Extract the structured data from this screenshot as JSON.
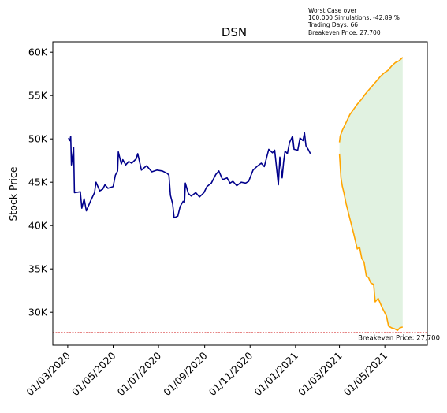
{
  "chart_data": {
    "type": "line",
    "title": "DSN",
    "ylabel": "Stock Price",
    "xlabel": "",
    "xlim": [
      "2020-02-10",
      "2021-06-27"
    ],
    "ylim": [
      26200,
      61200
    ],
    "grid": false,
    "x_ticks": [
      "01/03/2020",
      "01/05/2020",
      "01/07/2020",
      "01/09/2020",
      "01/11/2020",
      "01/01/2021",
      "01/03/2021",
      "01/05/2021"
    ],
    "y_ticks": [
      {
        "value": 30000,
        "label": "30K"
      },
      {
        "value": 35000,
        "label": "35K"
      },
      {
        "value": 40000,
        "label": "40K"
      },
      {
        "value": 45000,
        "label": "45K"
      },
      {
        "value": 50000,
        "label": "50K"
      },
      {
        "value": 55000,
        "label": "55K"
      },
      {
        "value": 60000,
        "label": "60K"
      }
    ],
    "series": [
      {
        "color": "#00008b",
        "points": [
          [
            "2020-03-02",
            50100
          ],
          [
            "2020-03-04",
            49800
          ],
          [
            "2020-03-05",
            50300
          ],
          [
            "2020-03-06",
            47000
          ],
          [
            "2020-03-09",
            49000
          ],
          [
            "2020-03-10",
            43800
          ],
          [
            "2020-03-18",
            43900
          ],
          [
            "2020-03-20",
            42000
          ],
          [
            "2020-03-23",
            43100
          ],
          [
            "2020-03-26",
            41700
          ],
          [
            "2020-04-01",
            42900
          ],
          [
            "2020-04-06",
            43800
          ],
          [
            "2020-04-08",
            45000
          ],
          [
            "2020-04-13",
            44000
          ],
          [
            "2020-04-17",
            44200
          ],
          [
            "2020-04-20",
            44700
          ],
          [
            "2020-04-24",
            44300
          ],
          [
            "2020-05-01",
            44500
          ],
          [
            "2020-05-04",
            45800
          ],
          [
            "2020-05-07",
            46300
          ],
          [
            "2020-05-08",
            48500
          ],
          [
            "2020-05-12",
            47100
          ],
          [
            "2020-05-14",
            47600
          ],
          [
            "2020-05-18",
            47000
          ],
          [
            "2020-05-22",
            47400
          ],
          [
            "2020-05-26",
            47200
          ],
          [
            "2020-06-01",
            47700
          ],
          [
            "2020-06-03",
            48300
          ],
          [
            "2020-06-08",
            46400
          ],
          [
            "2020-06-15",
            46900
          ],
          [
            "2020-06-22",
            46200
          ],
          [
            "2020-06-29",
            46400
          ],
          [
            "2020-07-06",
            46300
          ],
          [
            "2020-07-13",
            46000
          ],
          [
            "2020-07-15",
            45800
          ],
          [
            "2020-07-17",
            43500
          ],
          [
            "2020-07-20",
            42500
          ],
          [
            "2020-07-22",
            40900
          ],
          [
            "2020-07-27",
            41100
          ],
          [
            "2020-07-30",
            42200
          ],
          [
            "2020-08-03",
            42800
          ],
          [
            "2020-08-05",
            42700
          ],
          [
            "2020-08-06",
            44900
          ],
          [
            "2020-08-10",
            43700
          ],
          [
            "2020-08-14",
            43400
          ],
          [
            "2020-08-20",
            43800
          ],
          [
            "2020-08-25",
            43300
          ],
          [
            "2020-08-31",
            43800
          ],
          [
            "2020-09-04",
            44500
          ],
          [
            "2020-09-10",
            44900
          ],
          [
            "2020-09-16",
            45900
          ],
          [
            "2020-09-20",
            46300
          ],
          [
            "2020-09-25",
            45300
          ],
          [
            "2020-10-01",
            45500
          ],
          [
            "2020-10-05",
            44900
          ],
          [
            "2020-10-09",
            45100
          ],
          [
            "2020-10-14",
            44600
          ],
          [
            "2020-10-20",
            45000
          ],
          [
            "2020-10-26",
            44900
          ],
          [
            "2020-10-30",
            45100
          ],
          [
            "2020-11-05",
            46400
          ],
          [
            "2020-11-10",
            46800
          ],
          [
            "2020-11-16",
            47200
          ],
          [
            "2020-11-20",
            46800
          ],
          [
            "2020-11-26",
            48800
          ],
          [
            "2020-12-01",
            48400
          ],
          [
            "2020-12-04",
            48700
          ],
          [
            "2020-12-09",
            44700
          ],
          [
            "2020-12-11",
            47900
          ],
          [
            "2020-12-14",
            45500
          ],
          [
            "2020-12-16",
            47300
          ],
          [
            "2020-12-18",
            48600
          ],
          [
            "2020-12-21",
            48300
          ],
          [
            "2020-12-24",
            49600
          ],
          [
            "2020-12-28",
            50300
          ],
          [
            "2020-12-30",
            48800
          ],
          [
            "2021-01-04",
            48700
          ],
          [
            "2021-01-07",
            50100
          ],
          [
            "2021-01-11",
            49800
          ],
          [
            "2021-01-13",
            50700
          ],
          [
            "2021-01-15",
            49200
          ],
          [
            "2021-01-18",
            48800
          ],
          [
            "2021-01-21",
            48300
          ]
        ]
      },
      {
        "color": "#ffa500",
        "points": [
          [
            "2021-03-01",
            49600
          ],
          [
            "2021-03-02",
            50300
          ],
          [
            "2021-03-05",
            51000
          ],
          [
            "2021-03-10",
            51900
          ],
          [
            "2021-03-15",
            52800
          ],
          [
            "2021-03-20",
            53400
          ],
          [
            "2021-03-25",
            54000
          ],
          [
            "2021-03-31",
            54600
          ],
          [
            "2021-04-05",
            55200
          ],
          [
            "2021-04-10",
            55700
          ],
          [
            "2021-04-15",
            56200
          ],
          [
            "2021-04-20",
            56700
          ],
          [
            "2021-04-25",
            57200
          ],
          [
            "2021-04-30",
            57600
          ],
          [
            "2021-05-05",
            57900
          ],
          [
            "2021-05-10",
            58400
          ],
          [
            "2021-05-15",
            58800
          ],
          [
            "2021-05-20",
            59000
          ],
          [
            "2021-05-25",
            59400
          ]
        ]
      },
      {
        "color": "#ffa500",
        "points": [
          [
            "2021-03-01",
            48300
          ],
          [
            "2021-03-03",
            45500
          ],
          [
            "2021-03-05",
            44500
          ],
          [
            "2021-03-07",
            43800
          ],
          [
            "2021-03-10",
            42500
          ],
          [
            "2021-03-15",
            40800
          ],
          [
            "2021-03-20",
            39100
          ],
          [
            "2021-03-25",
            37300
          ],
          [
            "2021-03-28",
            37500
          ],
          [
            "2021-03-31",
            36200
          ],
          [
            "2021-04-03",
            35800
          ],
          [
            "2021-04-06",
            34200
          ],
          [
            "2021-04-09",
            34000
          ],
          [
            "2021-04-12",
            33400
          ],
          [
            "2021-04-16",
            33200
          ],
          [
            "2021-04-18",
            31200
          ],
          [
            "2021-04-22",
            31600
          ],
          [
            "2021-04-27",
            30600
          ],
          [
            "2021-05-03",
            29600
          ],
          [
            "2021-05-06",
            28400
          ],
          [
            "2021-05-10",
            28200
          ],
          [
            "2021-05-14",
            28100
          ],
          [
            "2021-05-18",
            27900
          ],
          [
            "2021-05-21",
            28200
          ],
          [
            "2021-05-25",
            28300
          ]
        ]
      }
    ],
    "fill": {
      "color": "#d7edd7"
    },
    "reference_line": {
      "value": 27700,
      "color": "#e06060",
      "label": "Breakeven Price: 27,700"
    }
  },
  "annotation": {
    "lines": [
      "Worst Case over",
      "100,000 Simulations: -42.89 %",
      "Trading Days: 66",
      "Breakeven Price: 27,700"
    ]
  }
}
